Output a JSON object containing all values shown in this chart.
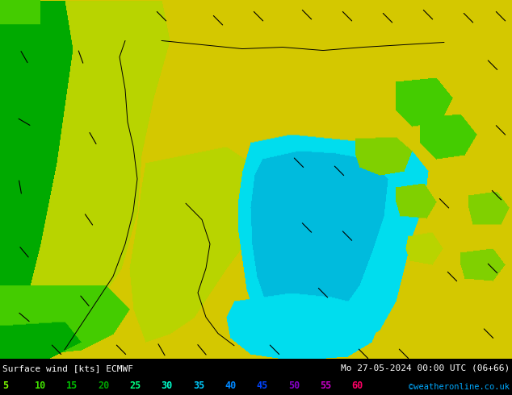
{
  "title_left": "Surface wind [kts] ECMWF",
  "title_right": "Mo 27-05-2024 00:00 UTC (06+66)",
  "credit": "©weatheronline.co.uk",
  "legend_values": [
    5,
    10,
    15,
    20,
    25,
    30,
    35,
    40,
    45,
    50,
    55,
    60
  ],
  "legend_colors": [
    "#80ff00",
    "#40e000",
    "#00c000",
    "#00a000",
    "#00ff80",
    "#00ffcc",
    "#00ccff",
    "#0088ff",
    "#0044ff",
    "#8800cc",
    "#cc00cc",
    "#ff0066"
  ],
  "bg_color": "#000000",
  "figsize": [
    6.34,
    4.9
  ],
  "dpi": 100,
  "wind_colors": {
    "5": "#80ff00",
    "10": "#40e000",
    "15": "#00c000",
    "20": "#80ff40",
    "25": "#c8ff00",
    "30": "#e8e800",
    "35": "#00eeff",
    "40": "#00bbff",
    "45": "#0088ff",
    "50": "#7700bb",
    "55": "#cc00cc",
    "60": "#ff0066"
  },
  "map_colors": {
    "yellow": "#d4c800",
    "yellow_green": "#b8d400",
    "green_light": "#80d000",
    "green_mid": "#44cc00",
    "green_dark": "#00aa00",
    "cyan_light": "#00ddee",
    "cyan_mid": "#00bbdd",
    "blue_light": "#44aaff",
    "teal": "#00cccc"
  }
}
